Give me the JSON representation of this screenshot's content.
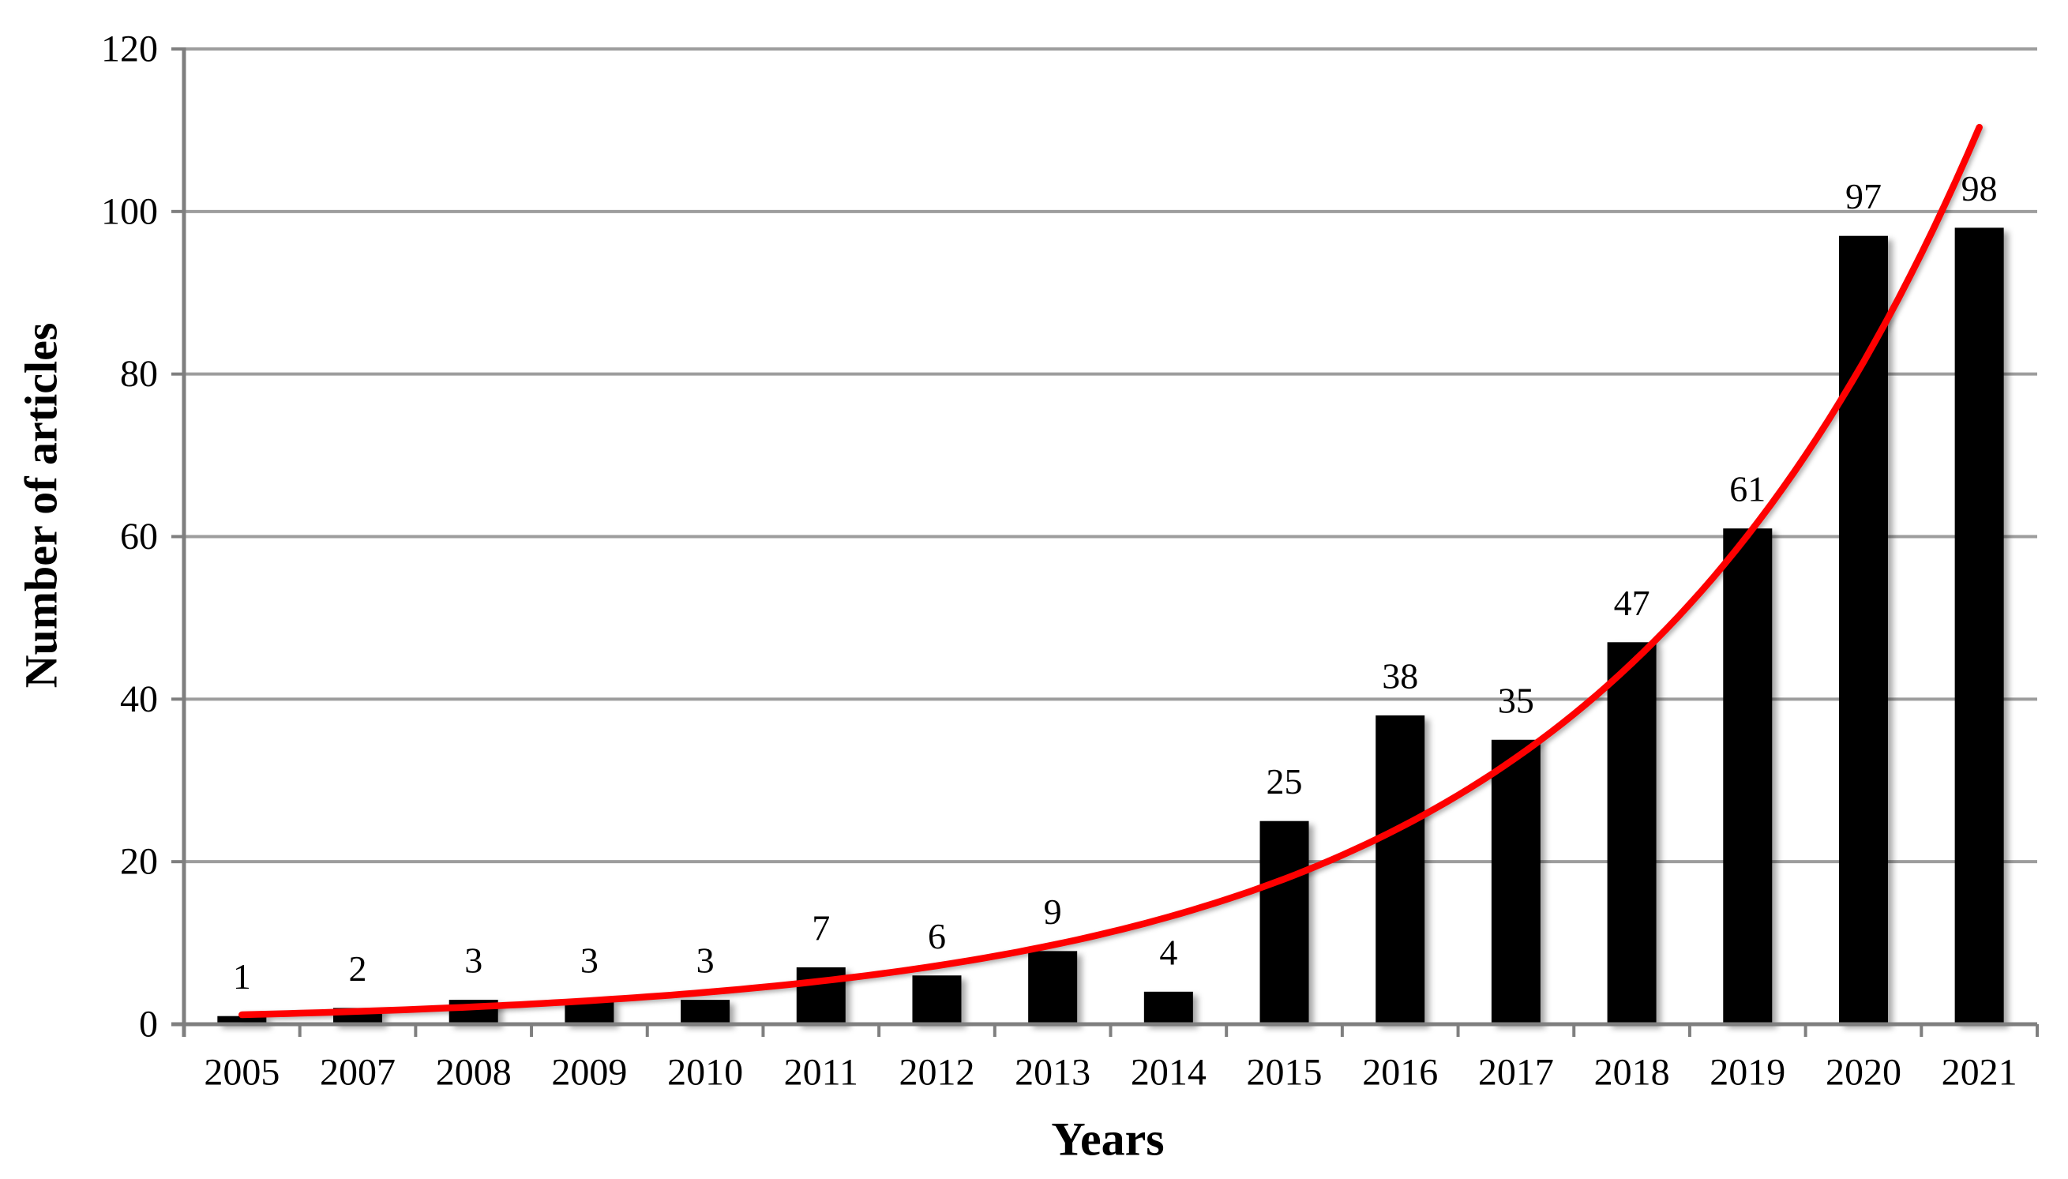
{
  "chart_data": {
    "type": "bar",
    "title": "",
    "xlabel": "Years",
    "ylabel": "Number of articles",
    "categories": [
      "2005",
      "2007",
      "2008",
      "2009",
      "2010",
      "2011",
      "2012",
      "2013",
      "2014",
      "2015",
      "2016",
      "2017",
      "2018",
      "2019",
      "2020",
      "2021"
    ],
    "values": [
      1,
      2,
      3,
      3,
      3,
      7,
      6,
      9,
      4,
      25,
      38,
      35,
      47,
      61,
      97,
      98
    ],
    "data_labels": [
      "1",
      "2",
      "3",
      "3",
      "3",
      "7",
      "6",
      "9",
      "4",
      "25",
      "38",
      "35",
      "47",
      "61",
      "97",
      "98"
    ],
    "ylim": [
      0,
      120
    ],
    "yticks": [
      0,
      20,
      40,
      60,
      80,
      100,
      120
    ],
    "ytick_labels": [
      "0",
      "20",
      "40",
      "60",
      "80",
      "100",
      "120"
    ],
    "grid": "horizontal",
    "legend": "none",
    "bar_color": "#000000",
    "gridline_color": "#9d9d9d",
    "axis_color": "#7f7f7f",
    "text_color": "#000000",
    "background_color": "#ffffff",
    "trendline": {
      "type": "exponential",
      "a": 1.165,
      "b": 0.3034,
      "color": "#fe0000",
      "i_start": 0,
      "i_end": 15.02
    }
  }
}
